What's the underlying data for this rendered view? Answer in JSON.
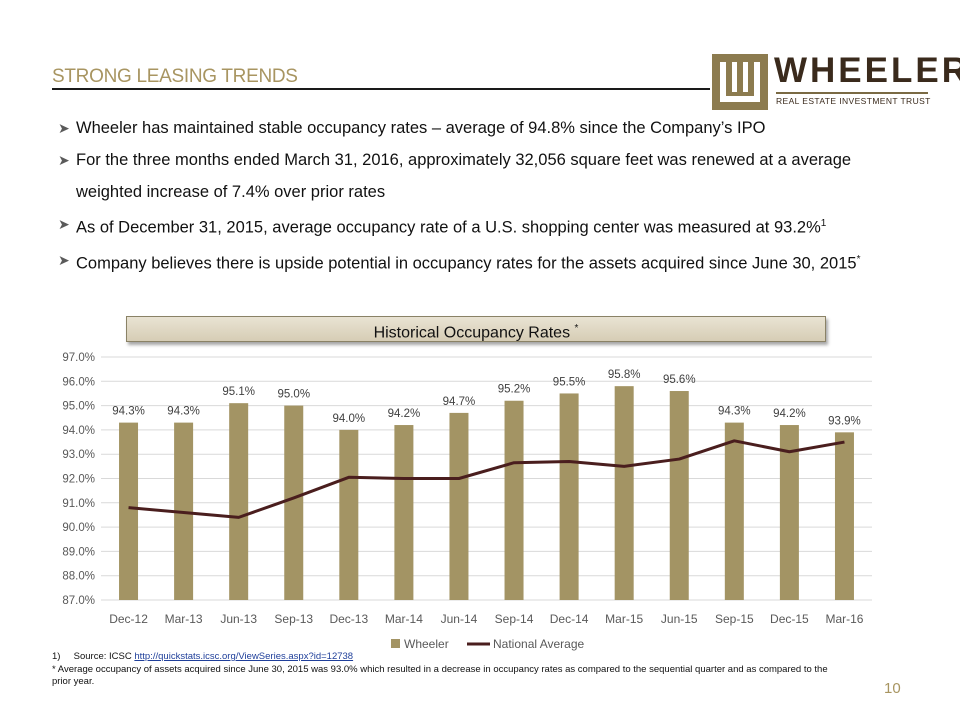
{
  "header": {
    "title": "STRONG LEASING TRENDS",
    "logo_word": "WHEELER",
    "logo_sub": "REAL ESTATE INVESTMENT TRUST"
  },
  "bullets": [
    {
      "text": "Wheeler has maintained stable occupancy rates – average of 94.8% since the Company’s IPO"
    },
    {
      "text": "For the three months ended March 31, 2016, approximately 32,056 square feet was renewed at a average weighted increase of 7.4% over prior rates"
    },
    {
      "text": "As of December 31, 2015, average occupancy rate of a U.S. shopping center was measured at 93.2%",
      "sup": "1"
    },
    {
      "text": "Company believes there is upside potential in occupancy rates for the assets acquired since June 30, 2015",
      "sup": "*"
    }
  ],
  "chart_header": {
    "text": "Historical Occupancy Rates",
    "sup": "*"
  },
  "chart_data": {
    "type": "bar",
    "title": "Historical Occupancy Rates *",
    "categories": [
      "Dec-12",
      "Mar-13",
      "Jun-13",
      "Sep-13",
      "Dec-13",
      "Mar-14",
      "Jun-14",
      "Sep-14",
      "Dec-14",
      "Mar-15",
      "Jun-15",
      "Sep-15",
      "Dec-15",
      "Mar-16"
    ],
    "series": [
      {
        "name": "Wheeler",
        "kind": "bar",
        "color": "#a39464",
        "values": [
          94.3,
          94.3,
          95.1,
          95.0,
          94.0,
          94.2,
          94.7,
          95.2,
          95.5,
          95.8,
          95.6,
          94.3,
          94.2,
          93.9
        ],
        "labels": [
          "94.3%",
          "94.3%",
          "95.1%",
          "95.0%",
          "94.0%",
          "94.2%",
          "94.7%",
          "95.2%",
          "95.5%",
          "95.8%",
          "95.6%",
          "94.3%",
          "94.2%",
          "93.9%"
        ]
      },
      {
        "name": "National Average",
        "kind": "line",
        "color": "#4a1e1e",
        "values": [
          90.8,
          90.6,
          90.4,
          91.2,
          92.05,
          92.0,
          92.0,
          92.65,
          92.7,
          92.5,
          92.8,
          93.55,
          93.1,
          93.5
        ]
      }
    ],
    "yticks": [
      "97.0%",
      "96.0%",
      "95.0%",
      "94.0%",
      "93.0%",
      "92.0%",
      "91.0%",
      "90.0%",
      "89.0%",
      "88.0%",
      "87.0%"
    ],
    "ylim": [
      87.0,
      97.0
    ],
    "legend_position": "bottom"
  },
  "footnotes": {
    "source_num": "1)",
    "source_label": "Source: ICSC",
    "source_link": "http://quickstats.icsc.org/ViewSeries.aspx?id=12738",
    "note": "* Average occupancy of assets acquired since June 30, 2015 was 93.0% which resulted in a decrease in occupancy rates as compared to the sequential quarter and as compared to the prior year."
  },
  "page_number": "10"
}
